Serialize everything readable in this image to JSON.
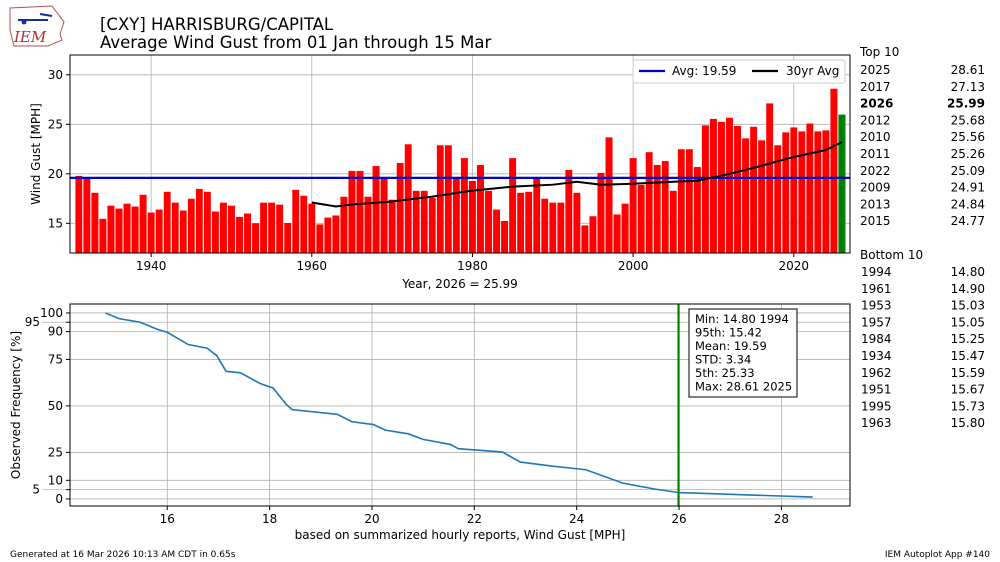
{
  "header": {
    "logo_text": "IEM",
    "title_line1": "[CXY] HARRISBURG/CAPITAL",
    "title_line2": "Average Wind Gust from 01 Jan through 15 Mar"
  },
  "footer": {
    "generated": "Generated at 16 Mar 2026 10:13 AM CDT in 0.65s",
    "app": "IEM Autoplot App #140"
  },
  "top10": {
    "title": "Top 10",
    "rows": [
      {
        "year": "2025",
        "value": "28.61",
        "bold": false
      },
      {
        "year": "2017",
        "value": "27.13",
        "bold": false
      },
      {
        "year": "2026",
        "value": "25.99",
        "bold": true
      },
      {
        "year": "2012",
        "value": "25.68",
        "bold": false
      },
      {
        "year": "2010",
        "value": "25.56",
        "bold": false
      },
      {
        "year": "2011",
        "value": "25.26",
        "bold": false
      },
      {
        "year": "2022",
        "value": "25.09",
        "bold": false
      },
      {
        "year": "2009",
        "value": "24.91",
        "bold": false
      },
      {
        "year": "2013",
        "value": "24.84",
        "bold": false
      },
      {
        "year": "2015",
        "value": "24.77",
        "bold": false
      }
    ]
  },
  "bottom10": {
    "title": "Bottom 10",
    "rows": [
      {
        "year": "1994",
        "value": "14.80"
      },
      {
        "year": "1961",
        "value": "14.90"
      },
      {
        "year": "1953",
        "value": "15.03"
      },
      {
        "year": "1957",
        "value": "15.05"
      },
      {
        "year": "1984",
        "value": "15.25"
      },
      {
        "year": "1934",
        "value": "15.47"
      },
      {
        "year": "1962",
        "value": "15.59"
      },
      {
        "year": "1951",
        "value": "15.67"
      },
      {
        "year": "1995",
        "value": "15.73"
      },
      {
        "year": "1963",
        "value": "15.80"
      }
    ]
  },
  "colors": {
    "bar": "#ff0000",
    "current_bar": "#008000",
    "avg_line": "#0000cc",
    "rolling": "#000000",
    "cdf": "#1f77b4",
    "marker": "#008000"
  },
  "chart_data": [
    {
      "type": "bar",
      "title": "Average Wind Gust from 01 Jan through 15 Mar",
      "xlabel": "Year, 2026 = 25.99",
      "ylabel": "Wind Gust [MPH]",
      "xlim": [
        1929.9,
        2027
      ],
      "ylim": [
        12.0,
        32.0
      ],
      "xticks": [
        1940,
        1960,
        1980,
        2000,
        2020
      ],
      "yticks": [
        15,
        20,
        25,
        30
      ],
      "grid": true,
      "legend_position": "top-right",
      "legend": [
        "Avg: 19.59",
        "30yr Avg"
      ],
      "average": 19.59,
      "highlight_year": 2026,
      "years": [
        1931,
        1932,
        1933,
        1934,
        1935,
        1936,
        1937,
        1938,
        1939,
        1940,
        1941,
        1942,
        1943,
        1944,
        1945,
        1946,
        1947,
        1948,
        1949,
        1950,
        1951,
        1952,
        1953,
        1954,
        1955,
        1956,
        1957,
        1958,
        1959,
        1960,
        1961,
        1962,
        1963,
        1964,
        1965,
        1966,
        1967,
        1968,
        1969,
        1970,
        1971,
        1972,
        1973,
        1974,
        1975,
        1976,
        1977,
        1978,
        1979,
        1980,
        1981,
        1982,
        1983,
        1984,
        1985,
        1986,
        1987,
        1988,
        1989,
        1990,
        1991,
        1992,
        1993,
        1994,
        1995,
        1996,
        1997,
        1998,
        1999,
        2000,
        2001,
        2002,
        2003,
        2004,
        2005,
        2006,
        2007,
        2008,
        2009,
        2010,
        2011,
        2012,
        2013,
        2014,
        2015,
        2016,
        2017,
        2018,
        2019,
        2020,
        2021,
        2022,
        2023,
        2024,
        2025,
        2026
      ],
      "values": [
        19.8,
        19.5,
        18.1,
        15.47,
        16.8,
        16.5,
        17.0,
        16.7,
        17.9,
        16.1,
        16.4,
        18.2,
        17.1,
        16.3,
        17.5,
        18.5,
        18.2,
        16.2,
        17.1,
        16.8,
        15.67,
        16.0,
        15.03,
        17.1,
        17.1,
        16.9,
        15.05,
        18.4,
        17.8,
        17.0,
        14.9,
        15.59,
        15.8,
        17.7,
        20.3,
        20.3,
        17.7,
        20.8,
        19.5,
        17.4,
        21.1,
        23.0,
        18.3,
        18.3,
        17.6,
        22.9,
        22.9,
        19.7,
        21.6,
        19.3,
        20.9,
        18.3,
        16.4,
        15.25,
        21.6,
        18.1,
        18.2,
        19.5,
        17.5,
        17.1,
        17.1,
        20.4,
        18.1,
        14.8,
        15.73,
        20.1,
        23.7,
        15.9,
        17.0,
        21.6,
        18.9,
        22.2,
        20.9,
        21.3,
        18.3,
        22.5,
        22.5,
        20.7,
        24.91,
        25.56,
        25.26,
        25.68,
        24.84,
        23.6,
        24.77,
        23.4,
        27.13,
        22.9,
        24.2,
        24.7,
        24.3,
        25.09,
        24.3,
        24.4,
        28.61,
        25.99
      ],
      "rolling_30yr": {
        "x": [
          1960,
          1963,
          1965,
          1970,
          1975,
          1980,
          1985,
          1990,
          1993,
          1996,
          2000,
          2005,
          2008,
          2012,
          2015,
          2020,
          2024,
          2026
        ],
        "y": [
          17.1,
          16.7,
          16.9,
          17.2,
          17.7,
          18.3,
          18.7,
          18.9,
          19.2,
          18.9,
          19.0,
          19.2,
          19.3,
          20.0,
          20.6,
          21.7,
          22.4,
          23.2
        ]
      }
    },
    {
      "type": "line",
      "xlabel": "based on summarized hourly reports, Wind Gust [MPH]",
      "ylabel": "Observed Frequency [%]",
      "xlim": [
        14.1,
        29.34
      ],
      "ylim": [
        -3.8,
        104.8
      ],
      "xticks": [
        16,
        18,
        20,
        22,
        24,
        26,
        28
      ],
      "yticks": [
        0,
        5,
        10,
        25,
        50,
        75,
        90,
        95,
        100
      ],
      "grid": true,
      "marker_x": 25.99,
      "x": [
        14.79,
        15.05,
        15.47,
        15.82,
        16.0,
        16.41,
        16.78,
        16.97,
        17.15,
        17.43,
        17.82,
        18.07,
        18.32,
        18.44,
        19.32,
        19.61,
        20.03,
        20.26,
        20.71,
        21.0,
        21.53,
        21.69,
        22.55,
        22.9,
        23.53,
        24.18,
        24.9,
        25.55,
        26.0,
        28.61
      ],
      "y": [
        100,
        97,
        95,
        91,
        89.6,
        83,
        81,
        77,
        68.6,
        67.8,
        62,
        59.6,
        51,
        48,
        45.5,
        41.5,
        40,
        37,
        35,
        32,
        29.3,
        27,
        25.2,
        19.8,
        17.6,
        15.7,
        8.5,
        5.2,
        3.4,
        1
      ],
      "stats": [
        "Min: 14.80 1994",
        "95th: 15.42",
        "Mean: 19.59",
        "STD: 3.34",
        "5th: 25.33",
        "Max: 28.61 2025"
      ]
    }
  ]
}
